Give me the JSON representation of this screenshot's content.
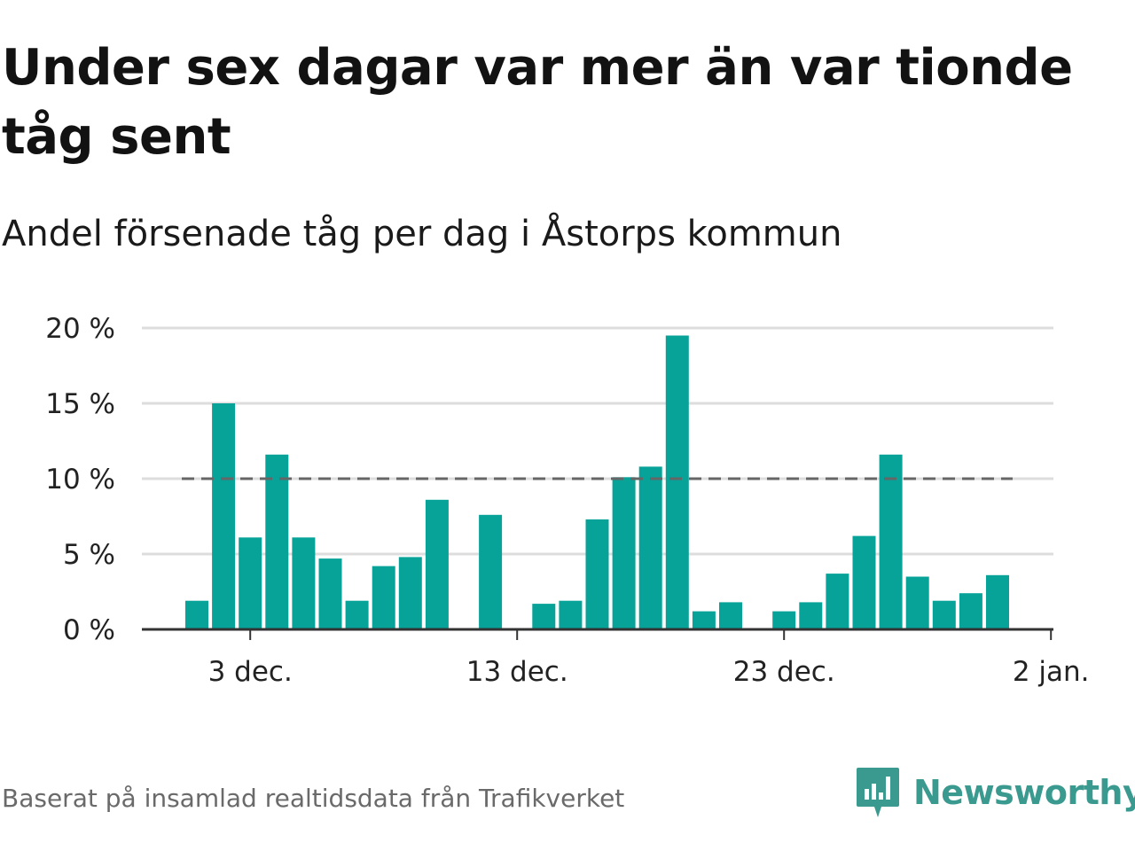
{
  "header": {
    "title": "Under sex dagar var mer än var tionde tåg sent",
    "subtitle": "Andel försenade tåg per dag i Åstorps kommun"
  },
  "footer": {
    "source": "Baserat på insamlad realtidsdata från Trafikverket",
    "brand": "Newsworthy"
  },
  "colors": {
    "bar": "#07a398",
    "grid": "#dddddd",
    "axis": "#333333",
    "reference_line": "#666666",
    "brand": "#3a9a8f"
  },
  "chart_data": {
    "type": "bar",
    "title": "Under sex dagar var mer än var tionde tåg sent",
    "subtitle": "Andel försenade tåg per dag i Åstorps kommun",
    "x_ticks": [
      "3 dec.",
      "13 dec.",
      "23 dec.",
      "2 jan."
    ],
    "y_ticks": [
      "0 %",
      "5 %",
      "10 %",
      "15 %",
      "20 %"
    ],
    "ylim": [
      0,
      20
    ],
    "reference_line": 10,
    "grid": true,
    "categories": [
      "1 dec.",
      "2 dec.",
      "3 dec.",
      "4 dec.",
      "5 dec.",
      "6 dec.",
      "7 dec.",
      "8 dec.",
      "9 dec.",
      "10 dec.",
      "11 dec.",
      "12 dec.",
      "13 dec.",
      "14 dec.",
      "15 dec.",
      "16 dec.",
      "17 dec.",
      "18 dec.",
      "19 dec.",
      "20 dec.",
      "21 dec.",
      "22 dec.",
      "23 dec.",
      "24 dec.",
      "25 dec.",
      "26 dec.",
      "27 dec.",
      "28 dec.",
      "29 dec.",
      "30 dec.",
      "31 dec.",
      "1 jan."
    ],
    "values": [
      1.9,
      15.0,
      6.1,
      11.6,
      6.1,
      4.7,
      1.9,
      4.2,
      4.8,
      8.6,
      null,
      7.6,
      null,
      1.7,
      1.9,
      7.3,
      10.1,
      10.8,
      19.5,
      1.2,
      1.8,
      null,
      1.2,
      1.8,
      3.7,
      6.2,
      11.6,
      3.5,
      1.9,
      2.4,
      3.6,
      null
    ]
  }
}
